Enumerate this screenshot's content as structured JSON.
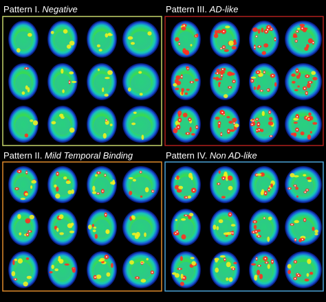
{
  "panels": [
    {
      "prefix": "Pattern I.",
      "name": "Negative"
    },
    {
      "prefix": "Pattern III.",
      "name": "AD-like"
    },
    {
      "prefix": "Pattern II.",
      "name": "Mild Temporal Binding"
    },
    {
      "prefix": "Pattern IV.",
      "name": "Non AD-like"
    }
  ]
}
